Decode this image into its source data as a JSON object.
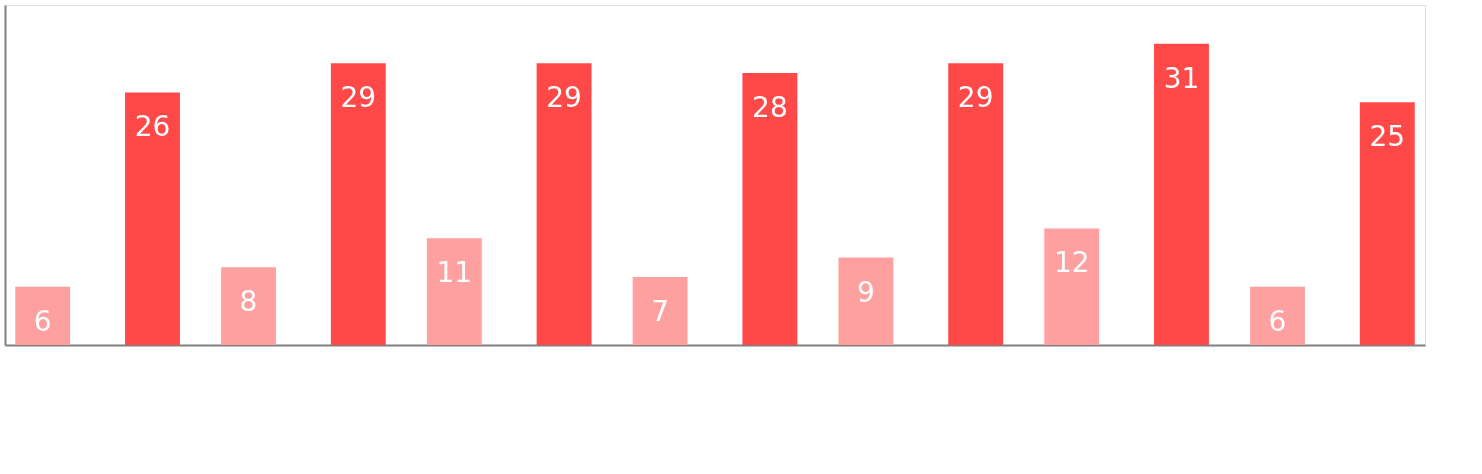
{
  "chart_data": {
    "type": "bar",
    "categories": [
      null,
      null,
      null,
      null,
      null,
      null,
      null
    ],
    "series": [
      {
        "color": "#ffa0a0",
        "values": [
          6,
          8,
          11,
          7,
          9,
          12,
          6
        ]
      },
      {
        "color": "#ff4848",
        "values": [
          26,
          29,
          29,
          28,
          29,
          31,
          25
        ]
      }
    ],
    "data_labels": true,
    "grid": false,
    "legend": false
  }
}
